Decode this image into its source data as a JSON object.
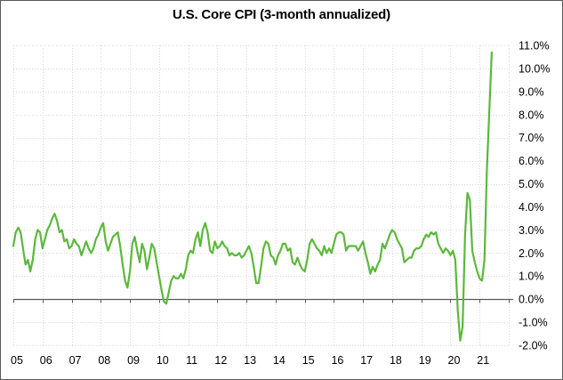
{
  "chart": {
    "title": "U.S. Core CPI (3-month annualized)"
  },
  "chart_data": {
    "type": "line",
    "title": "U.S. Core CPI (3-month annualized)",
    "series_name": "U.S. Core CPI, 3-month annualized % change",
    "frequency": "monthly",
    "start": "2005-01",
    "end": "2021-06",
    "x_tick_labels": [
      "05",
      "06",
      "07",
      "08",
      "09",
      "10",
      "11",
      "12",
      "13",
      "14",
      "15",
      "16",
      "17",
      "18",
      "19",
      "20",
      "21"
    ],
    "y_tick_labels": [
      "11.0%",
      "10.0%",
      "9.0%",
      "8.0%",
      "7.0%",
      "6.0%",
      "5.0%",
      "4.0%",
      "3.0%",
      "2.0%",
      "1.0%",
      "0.0%",
      "-1.0%",
      "-2.0%"
    ],
    "ylim": [
      -2,
      11
    ],
    "xlim_years": [
      2005,
      2022
    ],
    "grid": "both-dotted",
    "legend": "none",
    "zero_axis": true,
    "values": [
      2.3,
      2.9,
      3.1,
      2.9,
      2.2,
      1.5,
      1.7,
      1.2,
      1.7,
      2.6,
      3.0,
      2.9,
      2.2,
      2.6,
      3.0,
      3.2,
      3.5,
      3.7,
      3.4,
      2.9,
      3.0,
      2.5,
      2.6,
      2.2,
      2.3,
      2.6,
      2.4,
      2.3,
      1.9,
      2.2,
      2.5,
      2.2,
      2.0,
      2.2,
      2.6,
      2.8,
      3.1,
      3.3,
      2.5,
      2.1,
      2.4,
      2.7,
      2.8,
      2.9,
      2.3,
      1.5,
      0.8,
      0.5,
      1.2,
      2.4,
      2.7,
      2.1,
      1.6,
      2.4,
      2.1,
      1.3,
      1.8,
      2.4,
      2.2,
      1.6,
      1.0,
      0.4,
      -0.1,
      -0.2,
      0.3,
      0.8,
      1.0,
      0.9,
      0.9,
      1.1,
      0.9,
      1.3,
      1.9,
      2.1,
      2.0,
      2.6,
      2.9,
      2.3,
      3.0,
      3.3,
      2.9,
      2.1,
      2.0,
      2.5,
      2.2,
      2.3,
      2.5,
      2.3,
      2.2,
      1.9,
      2.0,
      1.9,
      1.9,
      2.0,
      1.8,
      1.9,
      2.1,
      2.3,
      2.0,
      1.4,
      0.7,
      0.7,
      1.4,
      2.2,
      2.5,
      2.4,
      1.9,
      1.8,
      1.5,
      1.9,
      2.1,
      2.4,
      2.4,
      2.1,
      2.2,
      1.6,
      1.5,
      1.8,
      1.5,
      1.3,
      1.2,
      1.7,
      2.4,
      2.6,
      2.4,
      2.2,
      2.1,
      1.9,
      2.3,
      2.0,
      2.2,
      2.0,
      2.4,
      2.8,
      2.9,
      2.9,
      2.8,
      2.1,
      2.3,
      2.3,
      2.3,
      2.3,
      2.1,
      2.3,
      2.5,
      2.0,
      1.6,
      1.1,
      1.4,
      1.2,
      1.5,
      1.7,
      2.4,
      2.2,
      2.5,
      2.8,
      3.0,
      2.9,
      2.6,
      2.4,
      2.2,
      1.6,
      1.7,
      1.8,
      1.8,
      2.1,
      2.2,
      2.2,
      2.3,
      2.6,
      2.8,
      2.7,
      2.9,
      2.8,
      2.9,
      2.4,
      2.2,
      2.0,
      2.2,
      2.1,
      1.9,
      2.1,
      1.7,
      -0.5,
      -1.8,
      -1.2,
      2.8,
      4.6,
      4.3,
      2.1,
      1.6,
      1.2,
      0.9,
      0.8,
      1.7,
      5.6,
      8.2,
      10.7
    ],
    "colors": {
      "line": "#5cb83c",
      "gridline": "#d9d9d9",
      "zero_axis": "#595959",
      "tick_text": "#000000",
      "border": "#595959"
    }
  }
}
